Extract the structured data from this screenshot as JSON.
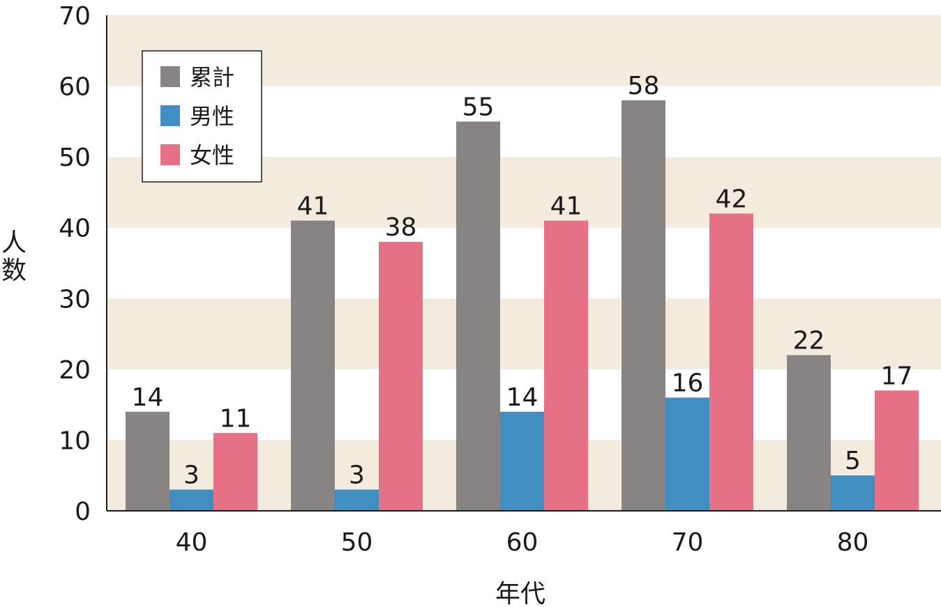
{
  "chart_data": {
    "type": "bar",
    "title": "",
    "xlabel": "年代",
    "ylabel": "人数",
    "categories": [
      "40",
      "50",
      "60",
      "70",
      "80"
    ],
    "series": [
      {
        "name": "累計",
        "color": "#878483",
        "values": [
          14,
          41,
          55,
          58,
          22
        ]
      },
      {
        "name": "男性",
        "color": "#418fc2",
        "values": [
          3,
          3,
          14,
          16,
          5
        ]
      },
      {
        "name": "女性",
        "color": "#e67186",
        "values": [
          11,
          38,
          41,
          42,
          17
        ]
      }
    ],
    "ylim": [
      0,
      70
    ],
    "yticks": [
      0,
      10,
      20,
      30,
      40,
      50,
      60,
      70
    ],
    "band_colors": [
      "#f2ebde",
      "#ffffff"
    ],
    "legend_position": "top-left",
    "grid": false,
    "data_labels": true
  }
}
